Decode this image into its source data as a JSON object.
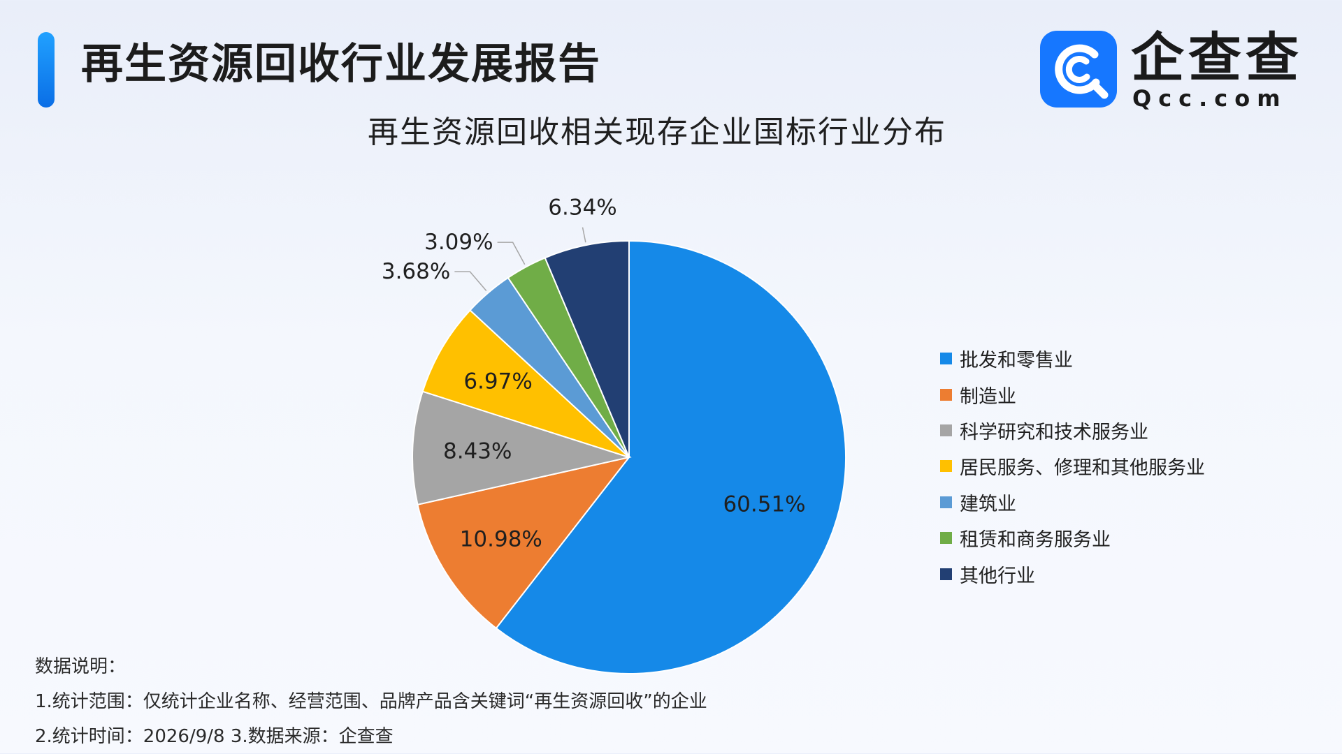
{
  "header": {
    "title": "再生资源回收行业发展报告",
    "logo_text": "企查查",
    "logo_sub": "Qcc.com"
  },
  "chart_data": {
    "type": "pie",
    "title": "再生资源回收相关现存企业国标行业分布",
    "legend_position": "right",
    "slices": [
      {
        "label": "批发和零售业",
        "value": 60.51,
        "value_label": "60.51%",
        "color": "#1589e8"
      },
      {
        "label": "制造业",
        "value": 10.98,
        "value_label": "10.98%",
        "color": "#ed7d31"
      },
      {
        "label": "科学研究和技术服务业",
        "value": 8.43,
        "value_label": "8.43%",
        "color": "#a5a5a5"
      },
      {
        "label": "居民服务、修理和其他服务业",
        "value": 6.97,
        "value_label": "6.97%",
        "color": "#ffc000"
      },
      {
        "label": "建筑业",
        "value": 3.68,
        "value_label": "3.68%",
        "color": "#5b9bd5"
      },
      {
        "label": "租赁和商务服务业",
        "value": 3.09,
        "value_label": "3.09%",
        "color": "#70ad47"
      },
      {
        "label": "其他行业",
        "value": 6.34,
        "value_label": "6.34%",
        "color": "#223f73"
      }
    ]
  },
  "notes": {
    "heading": "数据说明：",
    "line1": "1.统计范围：仅统计企业名称、经营范围、品牌产品含关键词“再生资源回收”的企业",
    "line2": "2.统计时间：2026/9/8  3.数据来源：企查查"
  }
}
